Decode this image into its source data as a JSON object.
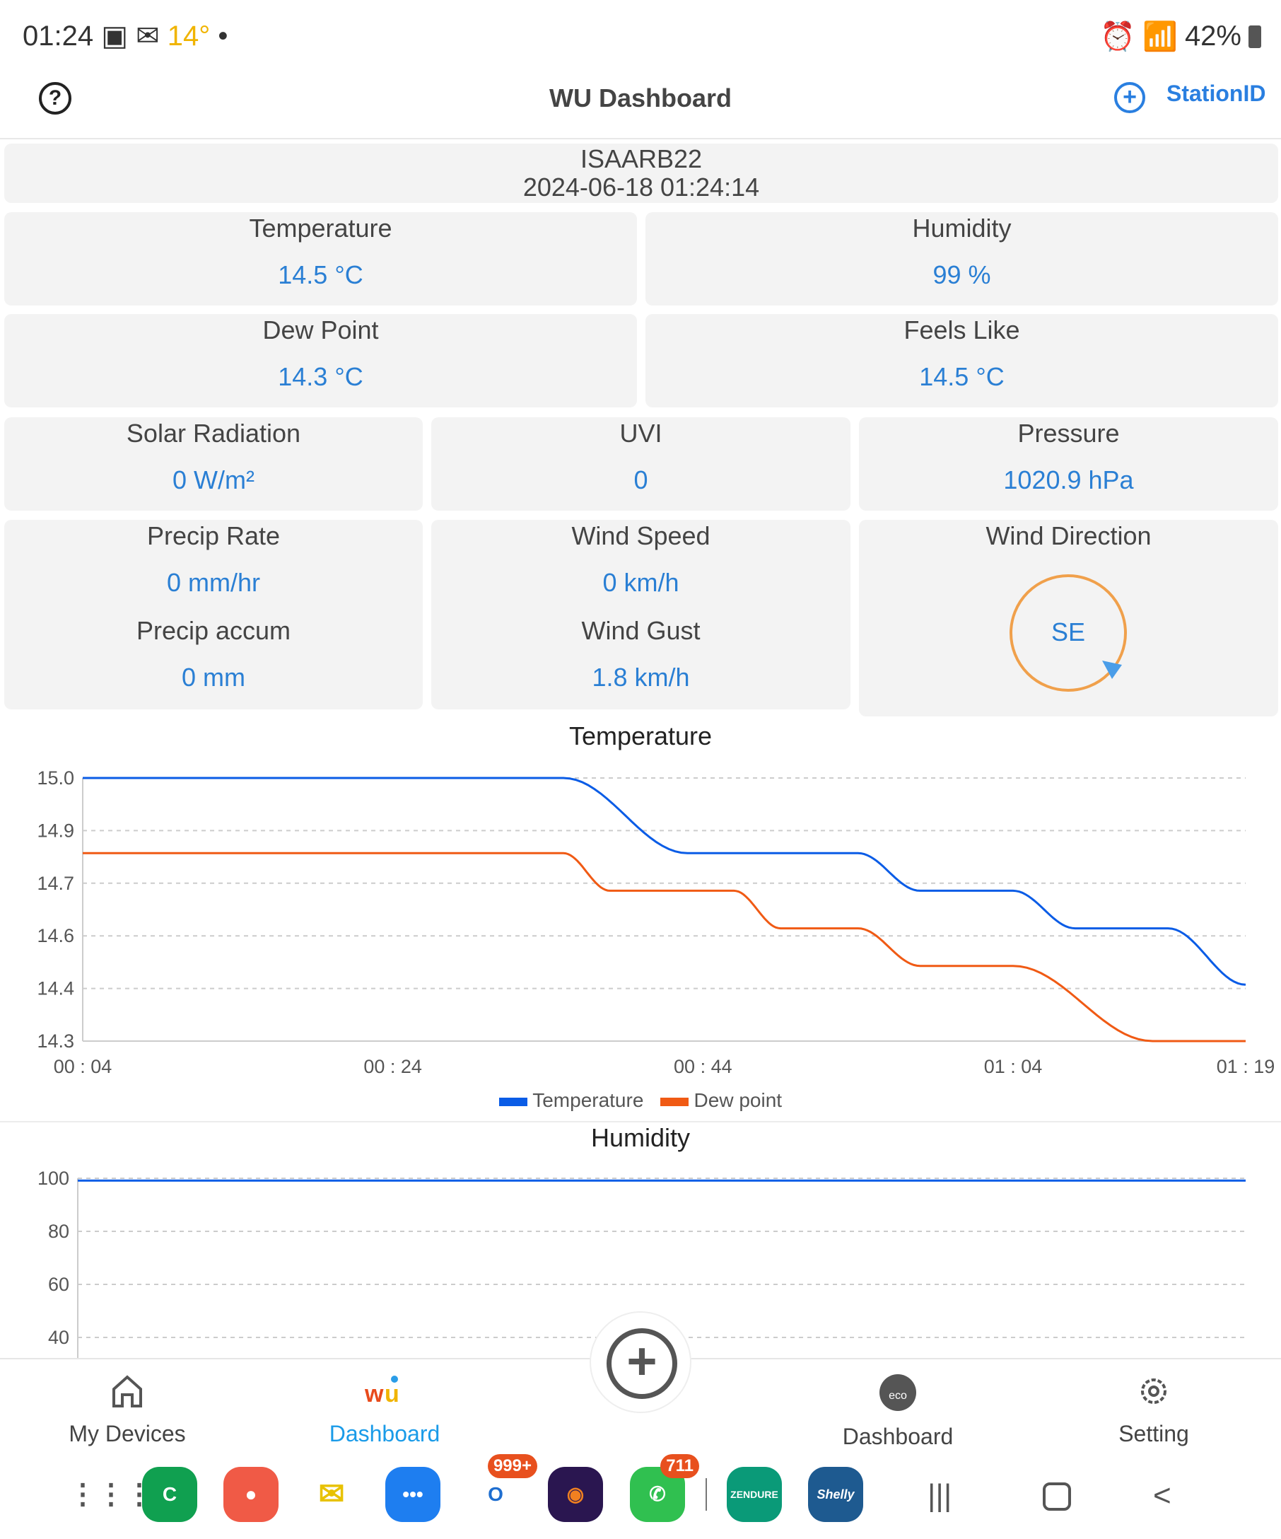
{
  "status_bar": {
    "time": "01:24",
    "temperature": "14°",
    "battery": "42%"
  },
  "header": {
    "title": "WU Dashboard",
    "station_id_label": "StationID"
  },
  "station": {
    "id": "ISAARB22",
    "datetime": "2024-06-18 01:24:14"
  },
  "metrics": {
    "temperature": {
      "label": "Temperature",
      "value": "14.5 °C"
    },
    "humidity": {
      "label": "Humidity",
      "value": "99 %"
    },
    "dew_point": {
      "label": "Dew Point",
      "value": "14.3 °C"
    },
    "feels_like": {
      "label": "Feels Like",
      "value": "14.5 °C"
    },
    "solar": {
      "label": "Solar Radiation",
      "value": "0 W/m²"
    },
    "uvi": {
      "label": "UVI",
      "value": "0"
    },
    "pressure": {
      "label": "Pressure",
      "value": "1020.9 hPa"
    },
    "precip_rate": {
      "label": "Precip Rate",
      "value": "0 mm/hr"
    },
    "precip_accum": {
      "label": "Precip accum",
      "value": "0 mm"
    },
    "wind_speed": {
      "label": "Wind Speed",
      "value": "0 km/h"
    },
    "wind_gust": {
      "label": "Wind Gust",
      "value": "1.8 km/h"
    },
    "wind_direction": {
      "label": "Wind Direction",
      "value": "SE"
    }
  },
  "chart_data": [
    {
      "type": "line",
      "title": "Temperature",
      "xlabel": "",
      "ylabel": "",
      "x_ticks": [
        "00 : 04",
        "00 : 24",
        "00 : 44",
        "01 : 04",
        "01 : 19"
      ],
      "y_ticks": [
        "15.0",
        "14.9",
        "14.7",
        "14.6",
        "14.4",
        "14.3"
      ],
      "ylim": [
        14.3,
        15.0
      ],
      "xlim_minutes": [
        4,
        79
      ],
      "grid": true,
      "legend": "bottom",
      "series": [
        {
          "name": "Temperature",
          "color": "#0a5ce6",
          "points": [
            [
              "00:04",
              15.0
            ],
            [
              "00:35",
              15.0
            ],
            [
              "00:43",
              14.8
            ],
            [
              "00:54",
              14.8
            ],
            [
              "00:58",
              14.7
            ],
            [
              "01:04",
              14.7
            ],
            [
              "01:08",
              14.6
            ],
            [
              "01:14",
              14.6
            ],
            [
              "01:19",
              14.45
            ]
          ]
        },
        {
          "name": "Dew point",
          "color": "#f05a14",
          "points": [
            [
              "00:04",
              14.8
            ],
            [
              "00:35",
              14.8
            ],
            [
              "00:38",
              14.7
            ],
            [
              "00:46",
              14.7
            ],
            [
              "00:49",
              14.6
            ],
            [
              "00:54",
              14.6
            ],
            [
              "00:58",
              14.5
            ],
            [
              "01:04",
              14.5
            ],
            [
              "01:13",
              14.3
            ],
            [
              "01:19",
              14.3
            ]
          ]
        }
      ]
    },
    {
      "type": "line",
      "title": "Humidity",
      "y_ticks": [
        "100",
        "80",
        "60",
        "40"
      ],
      "ylim_visible": [
        40,
        100
      ],
      "grid": true,
      "series": [
        {
          "color": "#0a5ce6",
          "points": [
            [
              "00:04",
              99
            ],
            [
              "01:19",
              99
            ]
          ]
        }
      ]
    }
  ],
  "bottom_nav": [
    {
      "label": "My Devices",
      "icon": "home-icon"
    },
    {
      "label": "Dashboard",
      "icon": "wu-logo-icon",
      "active": true
    },
    {
      "label": "Dashboard",
      "icon": "ecowitt-icon"
    },
    {
      "label": "Setting",
      "icon": "gear-icon"
    }
  ],
  "dock": {
    "outlook_badge": "999+",
    "whatsapp_badge": "711",
    "zendure_label": "ZENDURE",
    "shelly_label": "Shelly"
  },
  "colors": {
    "accent": "#2a7fd4",
    "card_bg": "#f3f3f3",
    "wind_ring": "#f0a04b"
  }
}
